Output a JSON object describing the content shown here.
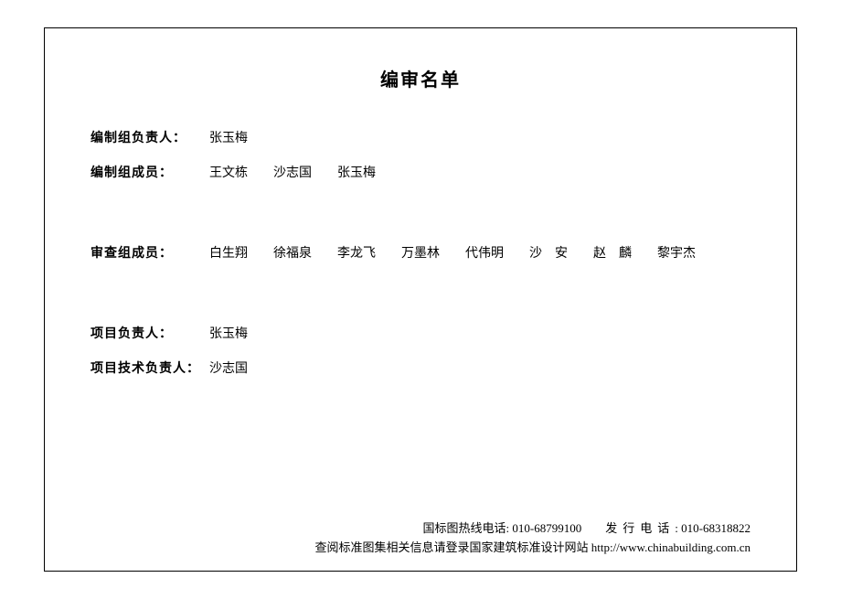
{
  "title": "编审名单",
  "rows": {
    "r1": {
      "label": "编制组负责人：",
      "names": [
        "张玉梅"
      ]
    },
    "r2": {
      "label": "编制组成员：",
      "names": [
        "王文栋",
        "沙志国",
        "张玉梅"
      ]
    },
    "r3": {
      "label": "审查组成员：",
      "names": [
        "白生翔",
        "徐福泉",
        "李龙飞",
        "万墨林",
        "代伟明",
        "沙　安",
        "赵　麟",
        "黎宇杰"
      ]
    },
    "r4": {
      "label": "项目负责人：",
      "names": [
        "张玉梅"
      ]
    },
    "r5": {
      "label": "项目技术负责人：",
      "names": [
        "沙志国"
      ]
    }
  },
  "footer": {
    "hotline_label": "国标图热线电话:",
    "hotline_number": "010-68799100",
    "dist_label": "发行电话",
    "dist_sep": ":",
    "dist_number": "010-68318822",
    "note": "查阅标准图集相关信息请登录国家建筑标准设计网站 http://www.chinabuilding.com.cn"
  }
}
